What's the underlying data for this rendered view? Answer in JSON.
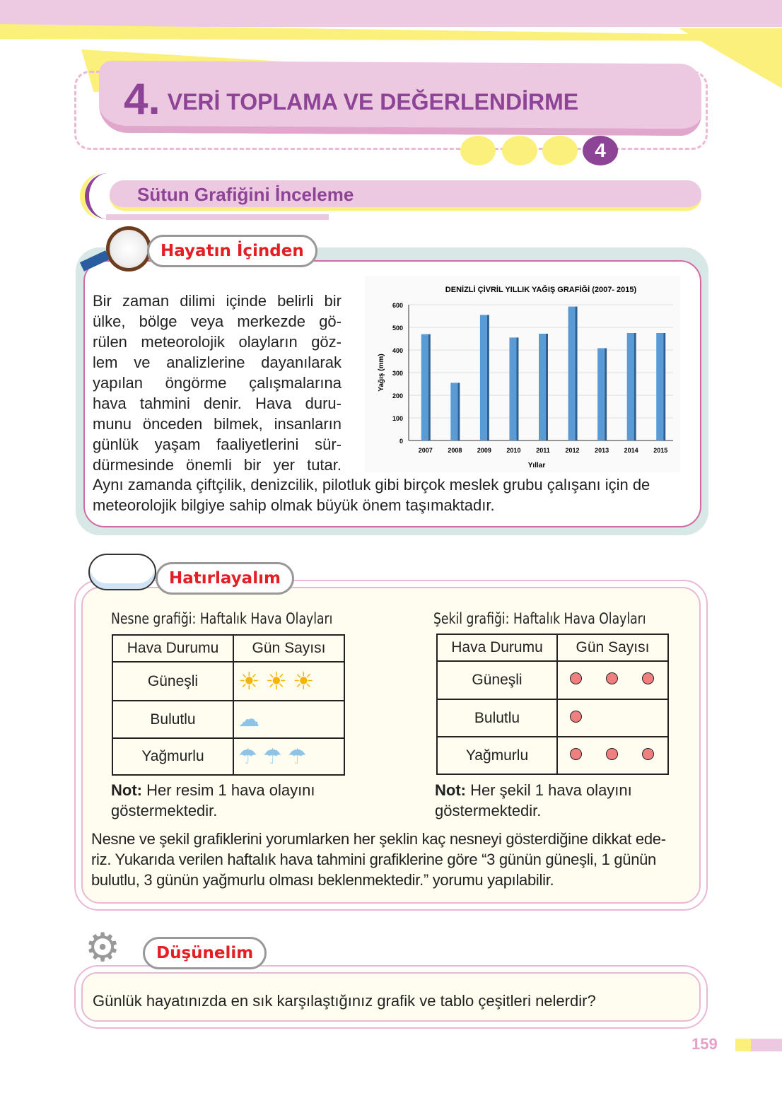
{
  "header": {
    "chapter_number": "4.",
    "chapter_title": "VERİ TOPLAMA VE DEĞERLENDİRME",
    "unit_badge": "4"
  },
  "section": {
    "title": "Sütun Grafiğini İnceleme"
  },
  "hayatin_icinden": {
    "label": "Hayatın İçinden",
    "lines": [
      "Bir zaman dilimi içinde belirli bir",
      "ülke, bölge veya merkezde gö-",
      "rülen meteorolojik olayların göz-",
      "lem ve analizlerine dayanılarak",
      "yapılan öngörme çalışmalarına",
      "hava tahmini denir. Hava duru-",
      "munu önceden bilmek, insanların",
      "günlük yaşam faaliyetlerini sür-",
      "dürmesinde önemli bir yer tutar."
    ],
    "full_lines": [
      "Aynı zamanda çiftçilik, denizcilik, pilotluk gibi birçok meslek grubu çalışanı için de",
      "meteorolojik bilgiye sahip olmak büyük önem taşımaktadır."
    ]
  },
  "chart_data": {
    "type": "bar",
    "title": "DENİZLİ ÇİVRİL YILLIK YAĞIŞ GRAFİĞİ (2007- 2015)",
    "xlabel": "Yıllar",
    "ylabel": "Yağış (mm)",
    "categories": [
      "2007",
      "2008",
      "2009",
      "2010",
      "2011",
      "2012",
      "2013",
      "2014",
      "2015"
    ],
    "values": [
      470,
      255,
      555,
      455,
      472,
      592,
      408,
      475,
      475
    ],
    "ylim": [
      0,
      600
    ],
    "yticks": [
      "0",
      "100",
      "200",
      "300",
      "400",
      "500",
      "600"
    ],
    "grid": true,
    "bar_color": "#5b9bd5"
  },
  "hatirlayalim": {
    "label": "Hatırlayalım",
    "left": {
      "caption": "Nesne grafiği: Haftalık Hava Olayları",
      "headers": [
        "Hava Durumu",
        "Gün Sayısı"
      ],
      "rows": [
        {
          "label": "Güneşli",
          "count": 3,
          "icon": "sun-icon"
        },
        {
          "label": "Bulutlu",
          "count": 1,
          "icon": "cloud-icon"
        },
        {
          "label": "Yağmurlu",
          "count": 3,
          "icon": "rain-cloud-icon"
        }
      ],
      "note_bold": "Not:",
      "note": " Her resim 1 hava olayını",
      "note2": "göstermektedir."
    },
    "right": {
      "caption": "Şekil grafiği: Haftalık Hava Olayları",
      "headers": [
        "Hava Durumu",
        "Gün Sayısı"
      ],
      "rows": [
        {
          "label": "Güneşli",
          "count": 3
        },
        {
          "label": "Bulutlu",
          "count": 1
        },
        {
          "label": "Yağmurlu",
          "count": 3
        }
      ],
      "note_bold": "Not:",
      "note": " Her şekil 1 hava olayını",
      "note2": "göstermektedir."
    },
    "para": [
      "Nesne ve şekil grafiklerini yorumlarken her şeklin kaç nesneyi gösterdiğine dikkat ede-",
      "riz. Yukarıda verilen haftalık hava tahmini grafiklerine göre “3 günün güneşli, 1 günün",
      "bulutlu, 3 günün yağmurlu olması beklenmektedir.” yorumu yapılabilir."
    ]
  },
  "dusunelim": {
    "label": "Düşünelim",
    "question": "Günlük hayatınızda en sık karşılaştığınız grafik ve tablo çeşitleri nelerdir?"
  },
  "footer": {
    "page_number": "159"
  },
  "colors": {
    "purple": "#8e4496",
    "pink": "#edc9e1",
    "yellow": "#fbf07c",
    "red": "#e31e24"
  }
}
